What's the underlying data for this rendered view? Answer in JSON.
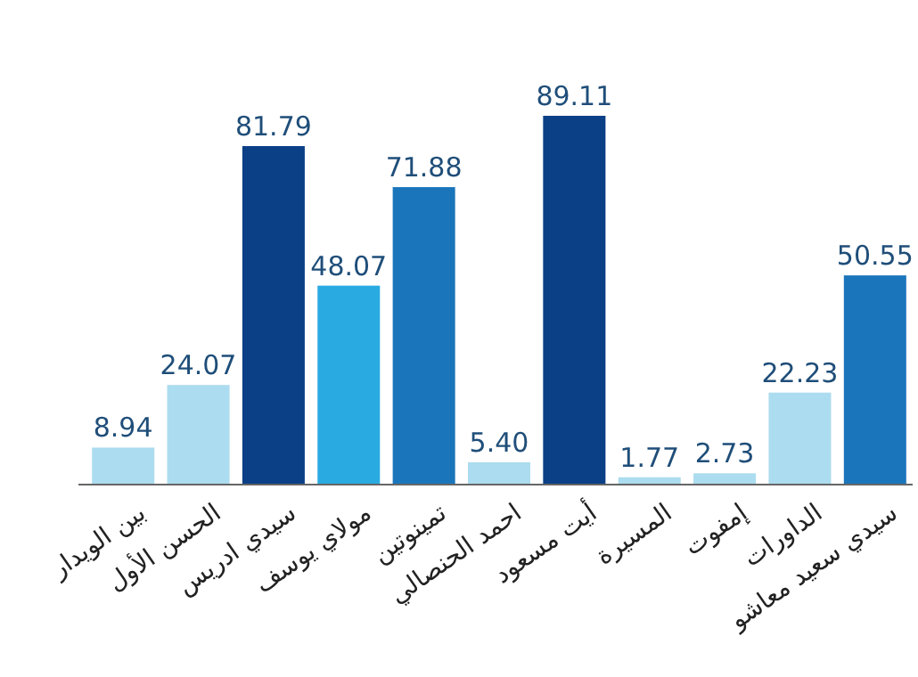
{
  "chart_data": {
    "type": "bar",
    "categories": [
      "بين الويدار",
      "الحسن الأول",
      "سيدي ادريس",
      "مولاي يوسف",
      "تمينوتين",
      "احمد الحنصالي",
      "أيت مسعود",
      "المسيرة",
      "إمفوت",
      "الداورات",
      "سيدي سعيد معاشو"
    ],
    "values": [
      8.94,
      24.07,
      81.79,
      48.07,
      71.88,
      5.4,
      89.11,
      1.77,
      2.73,
      22.23,
      50.55
    ],
    "value_labels": [
      "8.94",
      "24.07",
      "81.79",
      "48.07",
      "71.88",
      "5.40",
      "89.11",
      "1.77",
      "2.73",
      "22.23",
      "50.55"
    ],
    "colors": [
      "#acdcef",
      "#acdcef",
      "#0b3f86",
      "#29abe2",
      "#1b75bb",
      "#acdcef",
      "#0b3f86",
      "#acdcef",
      "#acdcef",
      "#acdcef",
      "#1b75bb"
    ]
  }
}
